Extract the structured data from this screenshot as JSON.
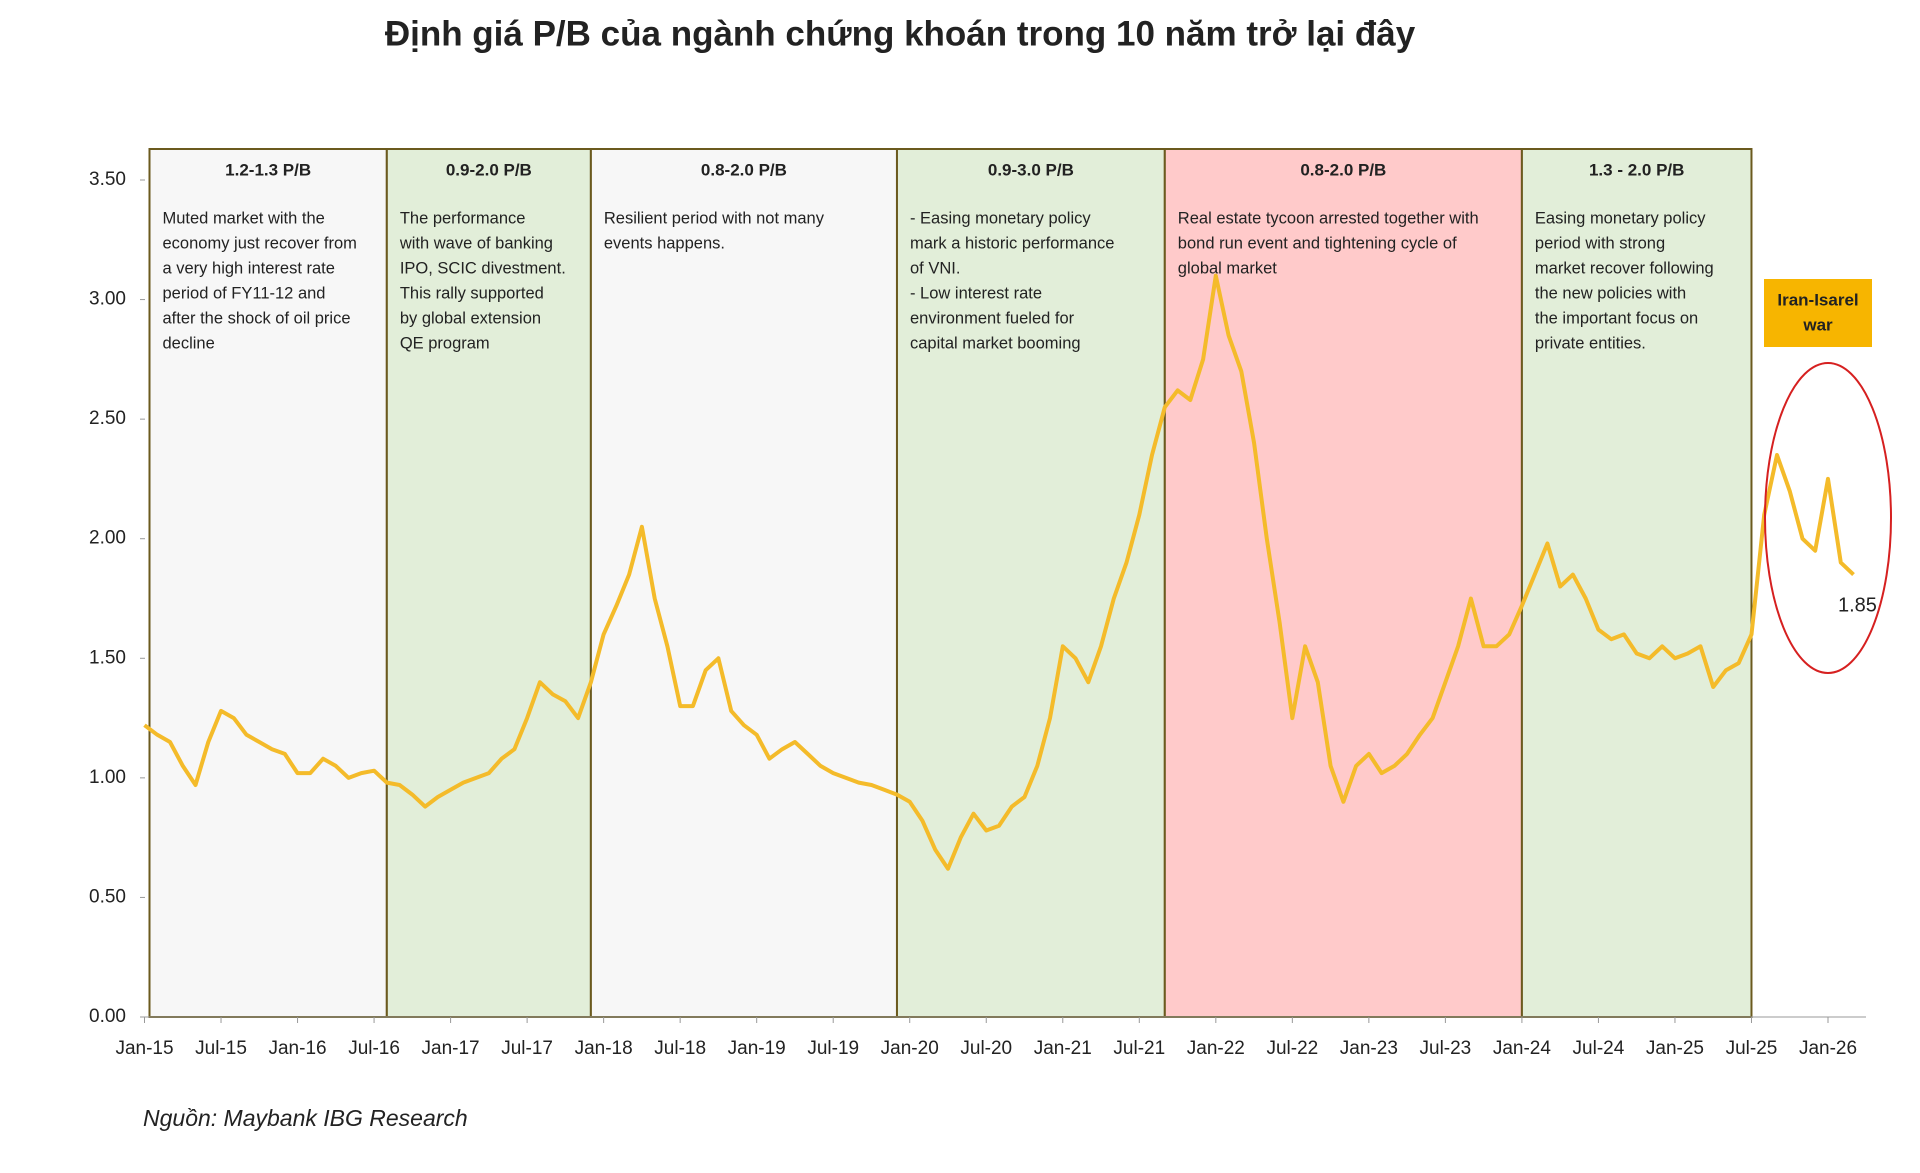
{
  "chart_data": {
    "type": "line",
    "title": "Định giá P/B của ngành chứng khoán trong 10 năm trở lại đây",
    "source": "Nguồn: Maybank IBG Research",
    "x": [
      "2015-01",
      "2015-02",
      "2015-03",
      "2015-04",
      "2015-05",
      "2015-06",
      "2015-07",
      "2015-08",
      "2015-09",
      "2015-10",
      "2015-11",
      "2015-12",
      "2016-01",
      "2016-02",
      "2016-03",
      "2016-04",
      "2016-05",
      "2016-06",
      "2016-07",
      "2016-08",
      "2016-09",
      "2016-10",
      "2016-11",
      "2016-12",
      "2017-01",
      "2017-02",
      "2017-03",
      "2017-04",
      "2017-05",
      "2017-06",
      "2017-07",
      "2017-08",
      "2017-09",
      "2017-10",
      "2017-11",
      "2017-12",
      "2018-01",
      "2018-02",
      "2018-03",
      "2018-04",
      "2018-05",
      "2018-06",
      "2018-07",
      "2018-08",
      "2018-09",
      "2018-10",
      "2018-11",
      "2018-12",
      "2019-01",
      "2019-02",
      "2019-03",
      "2019-04",
      "2019-05",
      "2019-06",
      "2019-07",
      "2019-08",
      "2019-09",
      "2019-10",
      "2019-11",
      "2019-12",
      "2020-01",
      "2020-02",
      "2020-03",
      "2020-04",
      "2020-05",
      "2020-06",
      "2020-07",
      "2020-08",
      "2020-09",
      "2020-10",
      "2020-11",
      "2020-12",
      "2021-01",
      "2021-02",
      "2021-03",
      "2021-04",
      "2021-05",
      "2021-06",
      "2021-07",
      "2021-08",
      "2021-09",
      "2021-10",
      "2021-11",
      "2021-12",
      "2022-01",
      "2022-02",
      "2022-03",
      "2022-04",
      "2022-05",
      "2022-06",
      "2022-07",
      "2022-08",
      "2022-09",
      "2022-10",
      "2022-11",
      "2022-12",
      "2023-01",
      "2023-02",
      "2023-03",
      "2023-04",
      "2023-05",
      "2023-06",
      "2023-07",
      "2023-08",
      "2023-09",
      "2023-10",
      "2023-11",
      "2023-12",
      "2024-01",
      "2024-02",
      "2024-03",
      "2024-04",
      "2024-05",
      "2024-06",
      "2024-07",
      "2024-08",
      "2024-09",
      "2024-10",
      "2024-11",
      "2024-12",
      "2025-01",
      "2025-02",
      "2025-03",
      "2025-04",
      "2025-05",
      "2025-06",
      "2025-07",
      "2025-08",
      "2025-09",
      "2025-10",
      "2025-11",
      "2025-12",
      "2026-01",
      "2026-02",
      "2026-03"
    ],
    "series": [
      {
        "name": "P/B",
        "color": "#f4bb2a",
        "values": [
          1.22,
          1.18,
          1.15,
          1.05,
          0.97,
          1.15,
          1.28,
          1.25,
          1.18,
          1.15,
          1.12,
          1.1,
          1.02,
          1.02,
          1.08,
          1.05,
          1.0,
          1.02,
          1.03,
          0.98,
          0.97,
          0.93,
          0.88,
          0.92,
          0.95,
          0.98,
          1.0,
          1.02,
          1.08,
          1.12,
          1.25,
          1.4,
          1.35,
          1.32,
          1.25,
          1.4,
          1.6,
          1.72,
          1.85,
          2.05,
          1.75,
          1.55,
          1.3,
          1.3,
          1.45,
          1.5,
          1.28,
          1.22,
          1.18,
          1.08,
          1.12,
          1.15,
          1.1,
          1.05,
          1.02,
          1.0,
          0.98,
          0.97,
          0.95,
          0.93,
          0.9,
          0.82,
          0.7,
          0.62,
          0.75,
          0.85,
          0.78,
          0.8,
          0.88,
          0.92,
          1.05,
          1.25,
          1.55,
          1.5,
          1.4,
          1.55,
          1.75,
          1.9,
          2.1,
          2.35,
          2.55,
          2.62,
          2.58,
          2.75,
          3.1,
          2.85,
          2.7,
          2.4,
          2.0,
          1.65,
          1.25,
          1.55,
          1.4,
          1.05,
          0.9,
          1.05,
          1.1,
          1.02,
          1.05,
          1.1,
          1.18,
          1.25,
          1.4,
          1.55,
          1.75,
          1.55,
          1.55,
          1.6,
          1.72,
          1.85,
          1.98,
          1.8,
          1.85,
          1.75,
          1.62,
          1.58,
          1.6,
          1.52,
          1.5,
          1.55,
          1.5,
          1.52,
          1.55,
          1.38,
          1.45,
          1.48,
          1.6,
          2.1,
          2.35,
          2.2,
          2.0,
          1.95,
          2.25,
          1.9,
          1.85
        ]
      }
    ],
    "ylim": [
      0,
      3.5
    ],
    "yticks": [
      {
        "value": 0,
        "label": "0.00"
      },
      {
        "value": 0.5,
        "label": "0.50"
      },
      {
        "value": 1,
        "label": "1.00"
      },
      {
        "value": 1.5,
        "label": "1.50"
      },
      {
        "value": 2,
        "label": "2.00"
      },
      {
        "value": 2.5,
        "label": "2.50"
      },
      {
        "value": 3,
        "label": "3.00"
      },
      {
        "value": 3.5,
        "label": "3.50"
      }
    ],
    "xticks": [
      {
        "value": "2015-01",
        "label": "Jan-15"
      },
      {
        "value": "2015-07",
        "label": "Jul-15"
      },
      {
        "value": "2016-01",
        "label": "Jan-16"
      },
      {
        "value": "2016-07",
        "label": "Jul-16"
      },
      {
        "value": "2017-01",
        "label": "Jan-17"
      },
      {
        "value": "2017-07",
        "label": "Jul-17"
      },
      {
        "value": "2018-01",
        "label": "Jan-18"
      },
      {
        "value": "2018-07",
        "label": "Jul-18"
      },
      {
        "value": "2019-01",
        "label": "Jan-19"
      },
      {
        "value": "2019-07",
        "label": "Jul-19"
      },
      {
        "value": "2020-01",
        "label": "Jan-20"
      },
      {
        "value": "2020-07",
        "label": "Jul-20"
      },
      {
        "value": "2021-01",
        "label": "Jan-21"
      },
      {
        "value": "2021-07",
        "label": "Jul-21"
      },
      {
        "value": "2022-01",
        "label": "Jan-22"
      },
      {
        "value": "2022-07",
        "label": "Jul-22"
      },
      {
        "value": "2023-01",
        "label": "Jan-23"
      },
      {
        "value": "2023-07",
        "label": "Jul-23"
      },
      {
        "value": "2024-01",
        "label": "Jan-24"
      },
      {
        "value": "2024-07",
        "label": "Jul-24"
      },
      {
        "value": "2025-01",
        "label": "Jan-25"
      },
      {
        "value": "2025-07",
        "label": "Jul-25"
      },
      {
        "value": "2026-01",
        "label": "Jan-26"
      }
    ],
    "regions": [
      {
        "start": "2015-01",
        "end": "2016-08",
        "color": "#f7f7f7",
        "label": "1.2-1.3 P/B",
        "lines": [
          "Muted market with the",
          "economy just recover from",
          "a very high interest rate",
          "period of FY11-12 and",
          "after the shock of oil price",
          "decline"
        ]
      },
      {
        "start": "2016-08",
        "end": "2017-12",
        "color": "#e2eed9",
        "label": "0.9-2.0 P/B",
        "lines": [
          "The performance",
          "with wave of banking",
          "IPO, SCIC divestment.",
          "This rally supported",
          "by global extension",
          "QE program"
        ]
      },
      {
        "start": "2017-12",
        "end": "2019-12",
        "color": "#f7f7f7",
        "label": "0.8-2.0 P/B",
        "lines": [
          "Resilient period with not many",
          "events happens."
        ]
      },
      {
        "start": "2019-12",
        "end": "2021-09",
        "color": "#e2eed9",
        "label": "0.9-3.0 P/B",
        "lines": [
          "- Easing monetary policy",
          "mark a historic performance",
          "of VNI.",
          "- Low interest rate",
          "environment fueled for",
          "capital market booming"
        ]
      },
      {
        "start": "2021-09",
        "end": "2024-01",
        "color": "#ffcaca",
        "label": "0.8-2.0 P/B",
        "lines": [
          "Real estate tycoon arrested together with",
          "bond run event and tightening cycle of",
          "global market"
        ]
      },
      {
        "start": "2024-01",
        "end": "2025-07",
        "color": "#e2eed9",
        "label": "1.3 - 2.0 P/B",
        "lines": [
          "Easing monetary policy",
          "period with strong",
          "market recover following",
          "the new policies with",
          "the important focus on",
          "private entities."
        ]
      }
    ],
    "event_box": {
      "lines": [
        "Iran-Isarel",
        "war"
      ],
      "color": "#f7b500"
    },
    "end_label": "1.85"
  }
}
